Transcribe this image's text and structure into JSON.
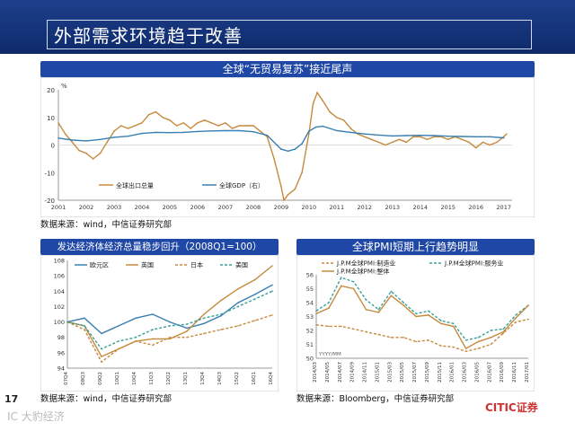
{
  "header": {
    "title": "外部需求环境趋于改善"
  },
  "page_number": "17",
  "watermarks": {
    "left": "IC 大豹经济",
    "right": "CITIC证券"
  },
  "charts": [
    {
      "title": "全球“无贸易复苏”接近尾声",
      "source": "数据来源：wind，中信证券研究部"
    },
    {
      "title": "发达经济体经济总量稳步回升（2008Q1=100）",
      "source": "数据来源：wind，中信证券研究部"
    },
    {
      "title": "全球PMI短期上行趋势明显",
      "source": "数据来源：Bloomberg，中信证券研究部"
    }
  ],
  "chart_data": [
    {
      "type": "line",
      "title": "全球“无贸易复苏”接近尾声",
      "ylabel": "%",
      "ylim": [
        -20,
        20
      ],
      "yticks": [
        -20,
        -10,
        0,
        10,
        20
      ],
      "xlim": [
        2001,
        2017.3
      ],
      "xticks": [
        "2001",
        "2002",
        "2003",
        "2004",
        "2005",
        "2006",
        "2007",
        "2008",
        "2009",
        "2010",
        "2011",
        "2012",
        "2013",
        "2014",
        "2015",
        "2016",
        "2017"
      ],
      "legend_position": "bottom-left",
      "series": [
        {
          "name": "全球出口总量",
          "color": "#c58a3d",
          "x": [
            2001,
            2001.25,
            2001.5,
            2001.75,
            2002,
            2002.25,
            2002.5,
            2002.75,
            2003,
            2003.25,
            2003.5,
            2003.75,
            2004,
            2004.25,
            2004.5,
            2004.75,
            2005,
            2005.25,
            2005.5,
            2005.75,
            2006,
            2006.25,
            2006.5,
            2006.75,
            2007,
            2007.25,
            2007.5,
            2007.75,
            2008,
            2008.25,
            2008.5,
            2008.75,
            2009,
            2009.1,
            2009.25,
            2009.5,
            2009.75,
            2010,
            2010.15,
            2010.3,
            2010.5,
            2010.75,
            2011,
            2011.25,
            2011.5,
            2011.75,
            2012,
            2012.25,
            2012.5,
            2012.75,
            2013,
            2013.25,
            2013.5,
            2013.75,
            2014,
            2014.25,
            2014.5,
            2014.75,
            2015,
            2015.25,
            2015.5,
            2015.75,
            2016,
            2016.25,
            2016.5,
            2016.75,
            2017,
            2017.1
          ],
          "y": [
            8,
            4,
            1,
            -2,
            -3,
            -5,
            -3,
            1,
            5,
            7,
            6,
            7,
            8,
            11,
            12,
            10,
            9,
            7,
            8,
            6,
            8,
            9,
            8,
            7,
            8,
            6,
            7,
            7,
            7,
            5,
            3,
            -5,
            -15,
            -20,
            -18,
            -16,
            -10,
            4,
            15,
            19,
            16,
            12,
            10,
            9,
            6,
            4,
            3,
            2,
            1,
            0,
            1,
            2,
            1,
            3,
            3,
            2,
            3,
            3,
            2,
            3,
            2,
            1,
            -1,
            1,
            0,
            1,
            3,
            4
          ]
        },
        {
          "name": "全球GDP（右）",
          "color": "#3a7fb2",
          "x": [
            2001,
            2001.5,
            2002,
            2002.5,
            2003,
            2003.5,
            2004,
            2004.5,
            2005,
            2005.5,
            2006,
            2006.5,
            2007,
            2007.5,
            2008,
            2008.5,
            2009,
            2009.25,
            2009.5,
            2009.75,
            2010,
            2010.25,
            2010.5,
            2011,
            2011.5,
            2012,
            2012.5,
            2013,
            2013.5,
            2014,
            2014.5,
            2015,
            2015.5,
            2016,
            2016.5,
            2017
          ],
          "y": [
            2.5,
            1.8,
            1.5,
            2.0,
            2.8,
            3.2,
            4.2,
            4.6,
            4.5,
            4.6,
            4.9,
            5.1,
            5.2,
            5.2,
            4.8,
            3.5,
            -1.5,
            -2.2,
            -1.5,
            0.5,
            5.0,
            6.5,
            6.8,
            5.2,
            4.6,
            4.0,
            3.6,
            3.3,
            3.4,
            3.5,
            3.4,
            3.2,
            3.1,
            3.0,
            3.0,
            2.6
          ]
        }
      ]
    },
    {
      "type": "line",
      "title": "发达经济体经济总量稳步回升（2008Q1=100）",
      "ylim": [
        94,
        108
      ],
      "yticks": [
        94,
        96,
        98,
        100,
        102,
        104,
        106,
        108
      ],
      "categories": [
        "07Q4",
        "08Q3",
        "09Q2",
        "10Q1",
        "10Q4",
        "11Q3",
        "12Q2",
        "13Q1",
        "13Q4",
        "14Q3",
        "15Q2",
        "16Q1",
        "16Q4"
      ],
      "legend_position": "top",
      "series": [
        {
          "name": "欧元区",
          "color": "#3a7fb2",
          "dash": "solid",
          "values": [
            100.0,
            100.5,
            98.5,
            99.5,
            100.5,
            101.0,
            100.0,
            99.2,
            99.8,
            100.8,
            102.5,
            103.6,
            104.8
          ]
        },
        {
          "name": "英国",
          "color": "#c58a3d",
          "dash": "solid",
          "values": [
            100.0,
            99.5,
            95.5,
            96.5,
            97.5,
            97.8,
            97.8,
            98.8,
            101.0,
            102.8,
            104.3,
            105.5,
            107.3
          ]
        },
        {
          "name": "日本",
          "color": "#c58a3d",
          "dash": "dash",
          "values": [
            100.0,
            99.0,
            94.8,
            96.5,
            97.5,
            97.0,
            98.0,
            98.0,
            98.5,
            99.0,
            99.5,
            100.2,
            100.9
          ]
        },
        {
          "name": "美国",
          "color": "#3a9f9a",
          "dash": "dash",
          "values": [
            100.0,
            99.5,
            96.5,
            97.5,
            98.0,
            99.0,
            99.5,
            99.7,
            100.5,
            101.0,
            102.0,
            103.0,
            104.0
          ]
        }
      ]
    },
    {
      "type": "line",
      "title": "全球PMI短期上行趋势明显",
      "ylim": [
        50,
        56
      ],
      "yticks": [
        50,
        51,
        52,
        53,
        54,
        55,
        56
      ],
      "categories": [
        "2014/03",
        "2014/05",
        "2014/07",
        "2014/09",
        "2014/11",
        "2015/01",
        "2015/03",
        "2015/05",
        "2015/07",
        "2015/09",
        "2015/11",
        "2016/01",
        "2016/03",
        "2016/05",
        "2016/07",
        "2016/09",
        "2016/11",
        "2017/01"
      ],
      "axis_note": "YYYY/MM",
      "legend_position": "top",
      "series": [
        {
          "name": "J.P.M全球PMI:制造业",
          "color": "#c58a3d",
          "dash": "dash",
          "values": [
            52.4,
            52.3,
            52.3,
            52.1,
            51.9,
            51.7,
            51.5,
            51.5,
            51.2,
            51.3,
            50.9,
            50.8,
            50.5,
            50.7,
            51.0,
            51.8,
            52.6,
            52.8
          ]
        },
        {
          "name": "J.P.M全球PMI:服务业",
          "color": "#3a9f9a",
          "dash": "dash",
          "values": [
            53.4,
            54.0,
            55.8,
            55.5,
            54.2,
            53.5,
            54.8,
            54.0,
            53.2,
            53.4,
            52.7,
            52.5,
            51.3,
            51.5,
            52.0,
            52.1,
            53.1,
            53.8
          ]
        },
        {
          "name": "J.P.M全球PMI:整体",
          "color": "#c58a3d",
          "dash": "solid",
          "values": [
            53.2,
            53.6,
            55.2,
            55.0,
            53.5,
            53.3,
            54.5,
            53.8,
            53.0,
            53.1,
            52.5,
            52.3,
            50.7,
            51.2,
            51.5,
            51.9,
            52.9,
            53.8
          ]
        }
      ]
    }
  ]
}
